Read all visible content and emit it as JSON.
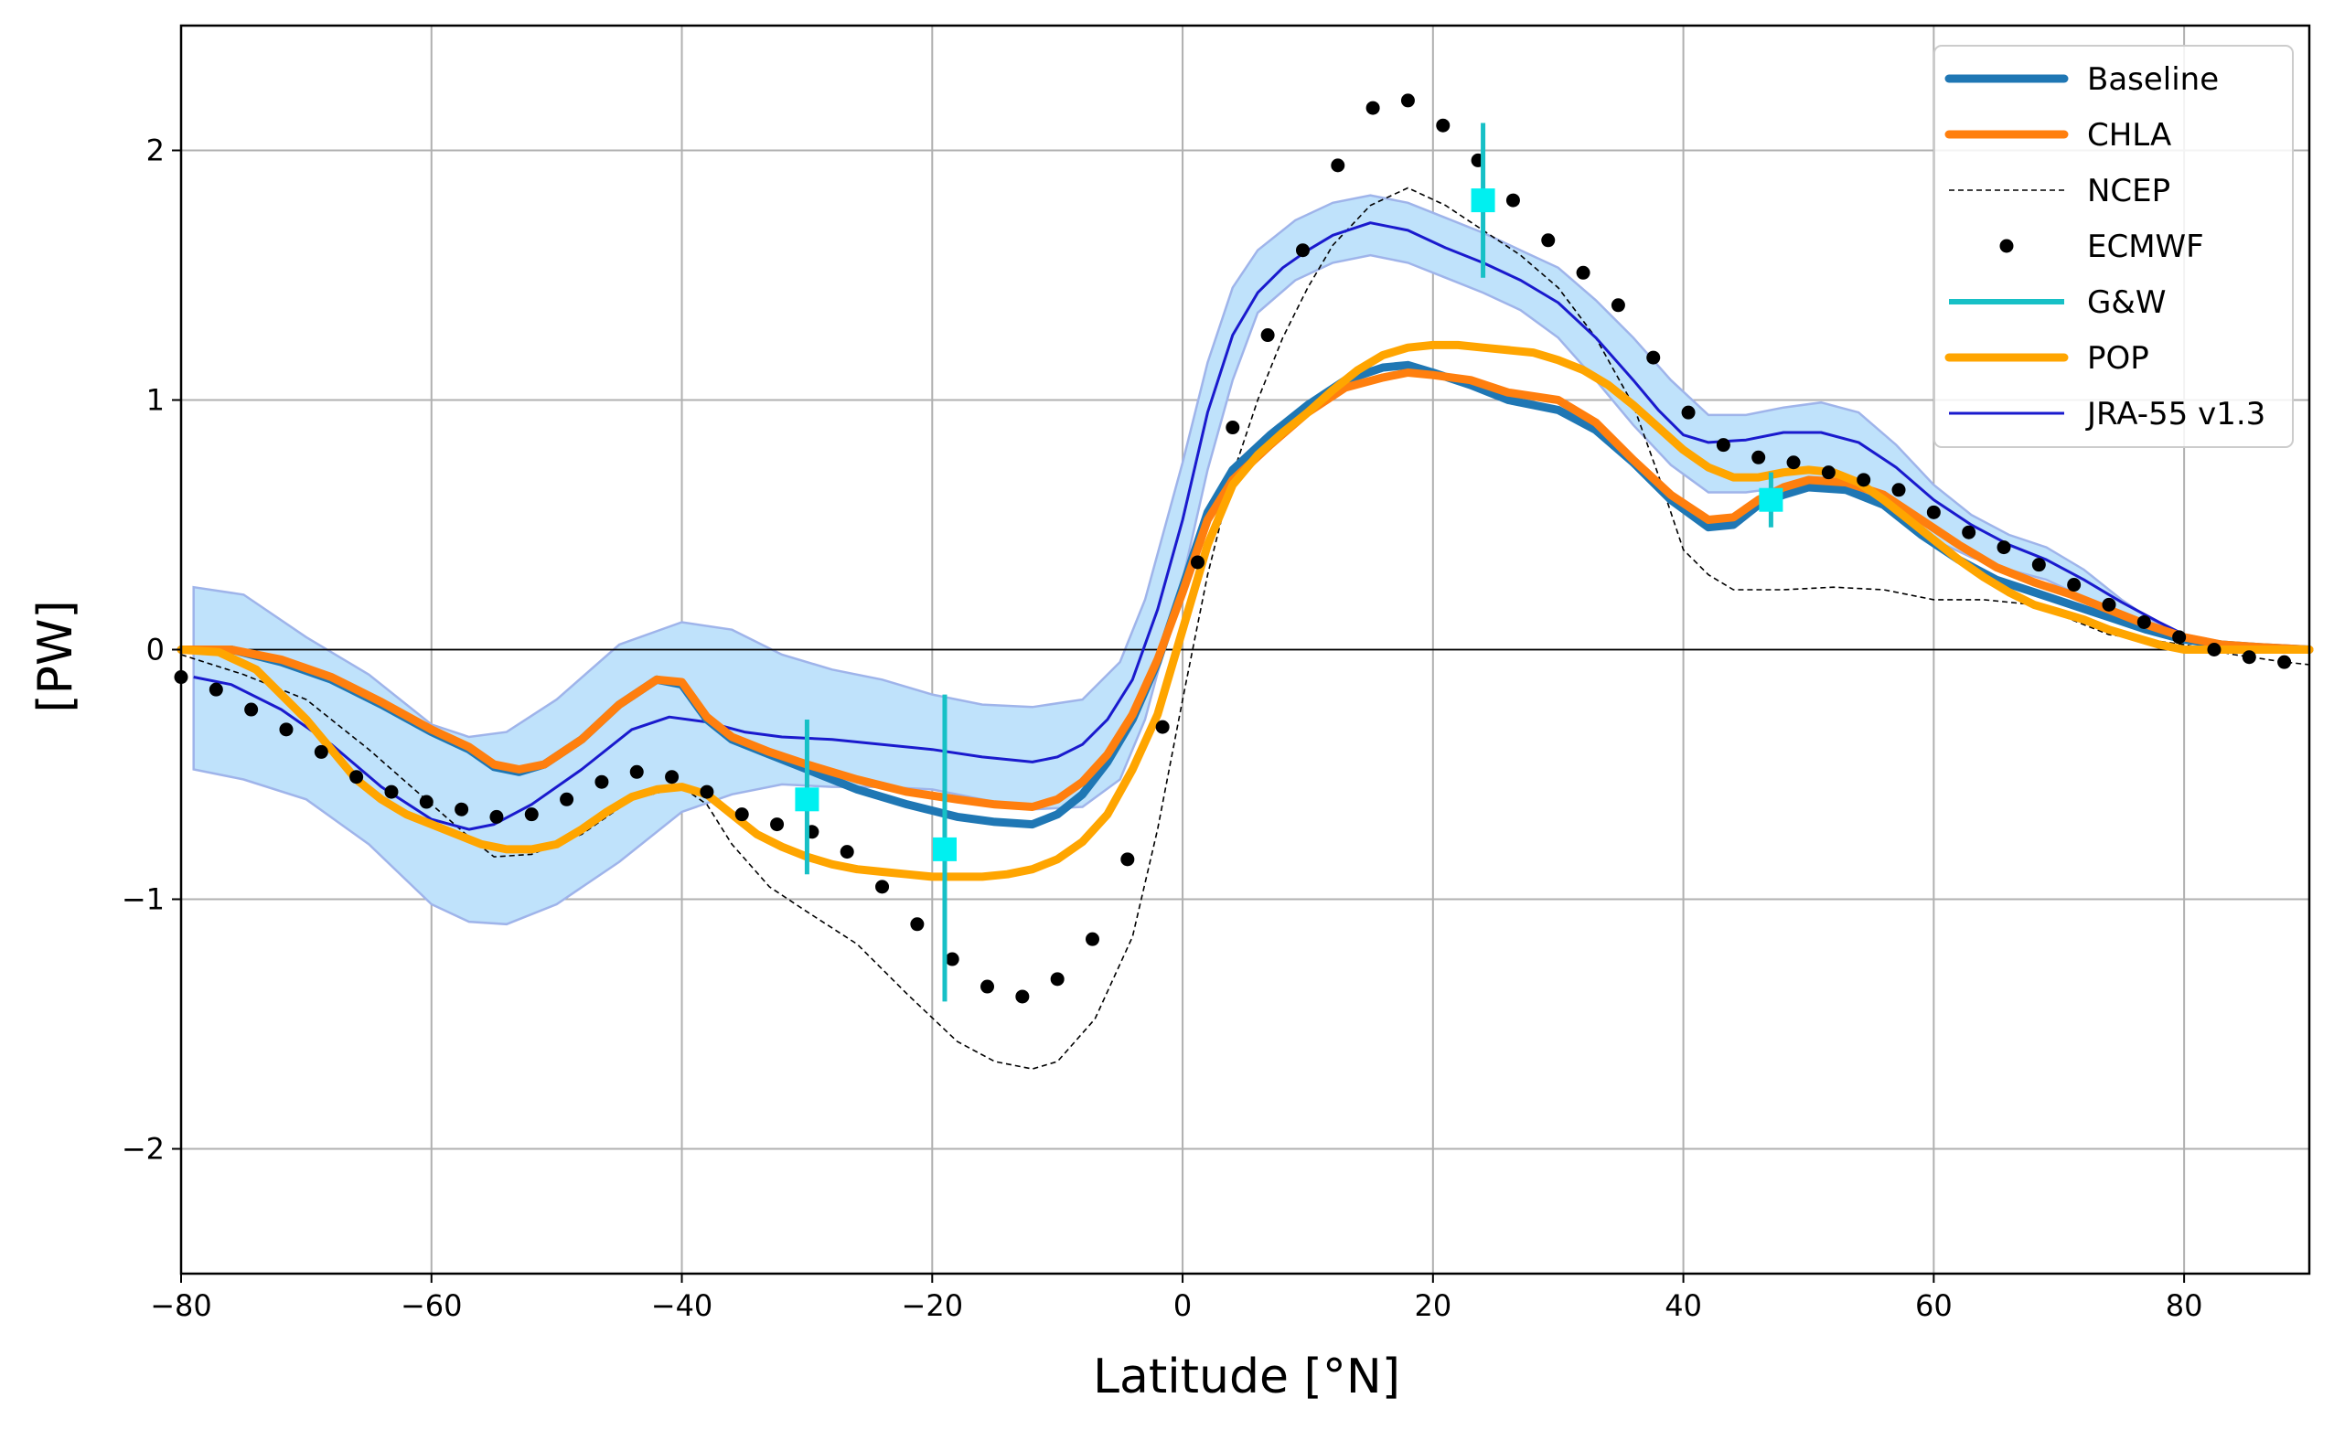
{
  "chart_data": {
    "type": "line",
    "title": "",
    "xlabel": "Latitude [°N]",
    "ylabel": "[PW]",
    "xlim": [
      -80,
      90
    ],
    "ylim": [
      -2.5,
      2.5
    ],
    "xticks": [
      -80,
      -60,
      -40,
      -20,
      0,
      20,
      40,
      60,
      80
    ],
    "xtick_labels": [
      "−80",
      "−60",
      "−40",
      "−20",
      "0",
      "20",
      "40",
      "60",
      "80"
    ],
    "yticks": [
      -2,
      -1,
      0,
      1,
      2
    ],
    "ytick_labels": [
      "−2",
      "−1",
      "0",
      "1",
      "2"
    ],
    "grid": true,
    "zero_line": true,
    "legend_position": "top-right",
    "band": {
      "series": "JRA-55 v1.3",
      "color": "#bfe2fb",
      "edge_color": "#9fb4ea",
      "x": [
        -79,
        -75,
        -70,
        -65,
        -60,
        -57,
        -54,
        -50,
        -45,
        -40,
        -36,
        -32,
        -28,
        -24,
        -20,
        -16,
        -12,
        -8,
        -5,
        -3,
        0,
        2,
        4,
        6,
        9,
        12,
        15,
        18,
        21,
        24,
        27,
        30,
        33,
        36,
        39,
        42,
        45,
        48,
        51,
        54,
        57,
        60,
        63,
        66,
        69,
        72,
        75,
        78,
        80,
        83,
        86,
        90
      ],
      "upper": [
        0.25,
        0.22,
        0.05,
        -0.1,
        -0.3,
        -0.35,
        -0.33,
        -0.2,
        0.02,
        0.11,
        0.08,
        -0.02,
        -0.08,
        -0.12,
        -0.18,
        -0.22,
        -0.23,
        -0.2,
        -0.05,
        0.2,
        0.75,
        1.15,
        1.45,
        1.6,
        1.72,
        1.79,
        1.82,
        1.79,
        1.73,
        1.67,
        1.6,
        1.53,
        1.4,
        1.25,
        1.08,
        0.94,
        0.94,
        0.97,
        0.99,
        0.95,
        0.82,
        0.66,
        0.54,
        0.46,
        0.41,
        0.32,
        0.2,
        0.1,
        0.06,
        0.03,
        0.01,
        0.0
      ],
      "lower": [
        -0.48,
        -0.52,
        -0.6,
        -0.78,
        -1.02,
        -1.09,
        -1.1,
        -1.02,
        -0.85,
        -0.65,
        -0.58,
        -0.54,
        -0.55,
        -0.55,
        -0.56,
        -0.6,
        -0.64,
        -0.63,
        -0.52,
        -0.28,
        0.28,
        0.72,
        1.08,
        1.35,
        1.48,
        1.55,
        1.58,
        1.55,
        1.49,
        1.43,
        1.36,
        1.25,
        1.08,
        0.9,
        0.74,
        0.63,
        0.63,
        0.65,
        0.66,
        0.63,
        0.55,
        0.44,
        0.37,
        0.32,
        0.28,
        0.21,
        0.13,
        0.07,
        0.04,
        0.02,
        0.0,
        -0.01
      ]
    },
    "series": [
      {
        "name": "Baseline",
        "color": "#1f77b4",
        "style": "solid-thick",
        "x": [
          -80,
          -76,
          -72,
          -68,
          -64,
          -60,
          -57,
          -55,
          -53,
          -51,
          -48,
          -45,
          -42,
          -40,
          -38,
          -36,
          -33,
          -30,
          -26,
          -22,
          -18,
          -15,
          -12,
          -10,
          -8,
          -6,
          -4,
          -2,
          0,
          2,
          4,
          7,
          10,
          13,
          16,
          18,
          20,
          23,
          26,
          30,
          33,
          36,
          39,
          42,
          44,
          46,
          48,
          50,
          53,
          56,
          59,
          62,
          65,
          68,
          71,
          74,
          77,
          80,
          83,
          86,
          90
        ],
        "y": [
          0.0,
          0.0,
          -0.05,
          -0.12,
          -0.22,
          -0.33,
          -0.4,
          -0.47,
          -0.49,
          -0.46,
          -0.36,
          -0.22,
          -0.12,
          -0.14,
          -0.28,
          -0.36,
          -0.42,
          -0.48,
          -0.56,
          -0.62,
          -0.67,
          -0.69,
          -0.7,
          -0.66,
          -0.58,
          -0.45,
          -0.28,
          -0.05,
          0.25,
          0.55,
          0.72,
          0.86,
          0.98,
          1.08,
          1.13,
          1.14,
          1.11,
          1.06,
          1.0,
          0.96,
          0.88,
          0.75,
          0.6,
          0.49,
          0.5,
          0.58,
          0.62,
          0.65,
          0.64,
          0.58,
          0.46,
          0.36,
          0.28,
          0.23,
          0.18,
          0.13,
          0.08,
          0.04,
          0.02,
          0.01,
          0.0
        ]
      },
      {
        "name": "CHLA",
        "color": "#ff7f0e",
        "style": "solid-thick",
        "x": [
          -80,
          -76,
          -72,
          -68,
          -64,
          -60,
          -57,
          -55,
          -53,
          -51,
          -48,
          -45,
          -42,
          -40,
          -38,
          -36,
          -33,
          -30,
          -26,
          -22,
          -18,
          -15,
          -12,
          -10,
          -8,
          -6,
          -4,
          -2,
          0,
          2,
          4,
          7,
          10,
          13,
          16,
          18,
          20,
          23,
          26,
          30,
          33,
          36,
          39,
          42,
          44,
          46,
          48,
          50,
          53,
          56,
          59,
          62,
          65,
          68,
          71,
          74,
          77,
          80,
          83,
          86,
          90
        ],
        "y": [
          0.0,
          0.0,
          -0.04,
          -0.11,
          -0.21,
          -0.32,
          -0.39,
          -0.46,
          -0.48,
          -0.46,
          -0.36,
          -0.22,
          -0.12,
          -0.13,
          -0.27,
          -0.35,
          -0.41,
          -0.46,
          -0.52,
          -0.57,
          -0.6,
          -0.62,
          -0.63,
          -0.6,
          -0.53,
          -0.42,
          -0.26,
          -0.04,
          0.23,
          0.52,
          0.68,
          0.82,
          0.95,
          1.05,
          1.09,
          1.11,
          1.1,
          1.08,
          1.03,
          1.0,
          0.91,
          0.76,
          0.62,
          0.52,
          0.53,
          0.6,
          0.65,
          0.68,
          0.67,
          0.62,
          0.52,
          0.42,
          0.33,
          0.27,
          0.22,
          0.16,
          0.1,
          0.05,
          0.02,
          0.01,
          0.0
        ]
      },
      {
        "name": "NCEP",
        "color": "#000000",
        "style": "dashed",
        "x": [
          -80,
          -75,
          -70,
          -65,
          -60,
          -57,
          -55,
          -52,
          -48,
          -44,
          -40,
          -38,
          -36,
          -33,
          -30,
          -26,
          -22,
          -18,
          -15,
          -12,
          -10,
          -7,
          -4,
          -2,
          0,
          2,
          4,
          6,
          8,
          10,
          12,
          15,
          18,
          21,
          24,
          27,
          30,
          33,
          36,
          38,
          40,
          42,
          44,
          48,
          52,
          56,
          60,
          64,
          68,
          71,
          74,
          77,
          80,
          84,
          88,
          90
        ],
        "y": [
          -0.02,
          -0.1,
          -0.2,
          -0.4,
          -0.62,
          -0.75,
          -0.83,
          -0.82,
          -0.74,
          -0.6,
          -0.55,
          -0.62,
          -0.78,
          -0.95,
          -1.05,
          -1.18,
          -1.38,
          -1.57,
          -1.65,
          -1.68,
          -1.65,
          -1.48,
          -1.15,
          -0.72,
          -0.2,
          0.3,
          0.7,
          1.0,
          1.25,
          1.45,
          1.62,
          1.78,
          1.85,
          1.78,
          1.68,
          1.58,
          1.45,
          1.25,
          0.98,
          0.7,
          0.4,
          0.3,
          0.24,
          0.24,
          0.25,
          0.24,
          0.2,
          0.2,
          0.18,
          0.12,
          0.06,
          0.04,
          0.02,
          -0.02,
          -0.05,
          -0.06
        ]
      },
      {
        "name": "ECMWF",
        "color": "#000000",
        "style": "dots",
        "x": [
          -80,
          -77.2,
          -74.4,
          -71.6,
          -68.8,
          -66,
          -63.2,
          -60.4,
          -57.6,
          -54.8,
          -52,
          -49.2,
          -46.4,
          -43.6,
          -40.8,
          -38,
          -35.2,
          -32.4,
          -29.6,
          -26.8,
          -24,
          -21.2,
          -18.4,
          -15.6,
          -12.8,
          -10,
          -7.2,
          -4.4,
          -1.6,
          1.2,
          4,
          6.8,
          9.6,
          12.4,
          15.2,
          18,
          20.8,
          23.6,
          26.4,
          29.2,
          32,
          34.8,
          37.6,
          40.4,
          43.2,
          46,
          48.8,
          51.6,
          54.4,
          57.2,
          60,
          62.8,
          65.6,
          68.4,
          71.2,
          74,
          76.8,
          79.6,
          82.4,
          85.2,
          88
        ],
        "y": [
          -0.11,
          -0.16,
          -0.24,
          -0.32,
          -0.41,
          -0.51,
          -0.57,
          -0.61,
          -0.64,
          -0.67,
          -0.66,
          -0.6,
          -0.53,
          -0.49,
          -0.51,
          -0.57,
          -0.66,
          -0.7,
          -0.73,
          -0.81,
          -0.95,
          -1.1,
          -1.24,
          -1.35,
          -1.39,
          -1.32,
          -1.16,
          -0.84,
          -0.31,
          0.35,
          0.89,
          1.26,
          1.6,
          1.94,
          2.17,
          2.2,
          2.1,
          1.96,
          1.8,
          1.64,
          1.51,
          1.38,
          1.17,
          0.95,
          0.82,
          0.77,
          0.75,
          0.71,
          0.68,
          0.64,
          0.55,
          0.47,
          0.41,
          0.34,
          0.26,
          0.18,
          0.11,
          0.05,
          0.0,
          -0.03,
          -0.05
        ]
      },
      {
        "name": "G&W",
        "color": "#17c0c6",
        "marker_color": "#00f0f0",
        "style": "errorbar",
        "points": [
          {
            "x": -30,
            "y": -0.6,
            "low": -0.9,
            "high": -0.28
          },
          {
            "x": -19,
            "y": -0.8,
            "low": -1.41,
            "high": -0.18
          },
          {
            "x": 24,
            "y": 1.8,
            "low": 1.49,
            "high": 2.11
          },
          {
            "x": 47,
            "y": 0.6,
            "low": 0.49,
            "high": 0.71
          }
        ]
      },
      {
        "name": "POP",
        "color": "#ffa500",
        "style": "solid-thick",
        "x": [
          -80,
          -77,
          -74,
          -72,
          -70,
          -68,
          -66,
          -64,
          -62,
          -60,
          -58,
          -56,
          -54,
          -52,
          -50,
          -48,
          -46,
          -44,
          -42,
          -40,
          -38,
          -36,
          -34,
          -32,
          -30,
          -28,
          -26,
          -24,
          -22,
          -20,
          -18,
          -16,
          -14,
          -12,
          -10,
          -8,
          -6,
          -4,
          -2,
          0,
          2,
          4,
          6,
          8,
          10,
          12,
          14,
          16,
          18,
          20,
          22,
          24,
          26,
          28,
          30,
          32,
          34,
          36,
          38,
          40,
          42,
          44,
          46,
          48,
          50,
          52,
          54,
          56,
          58,
          60,
          62,
          64,
          66,
          68,
          70,
          72,
          74,
          76,
          78,
          80,
          84,
          88,
          90
        ],
        "y": [
          0.0,
          -0.01,
          -0.08,
          -0.18,
          -0.28,
          -0.4,
          -0.52,
          -0.6,
          -0.66,
          -0.7,
          -0.74,
          -0.78,
          -0.8,
          -0.8,
          -0.78,
          -0.72,
          -0.65,
          -0.59,
          -0.56,
          -0.55,
          -0.58,
          -0.66,
          -0.74,
          -0.79,
          -0.83,
          -0.86,
          -0.88,
          -0.89,
          -0.9,
          -0.91,
          -0.91,
          -0.91,
          -0.9,
          -0.88,
          -0.84,
          -0.77,
          -0.66,
          -0.48,
          -0.26,
          0.08,
          0.42,
          0.66,
          0.78,
          0.87,
          0.95,
          1.04,
          1.12,
          1.18,
          1.21,
          1.22,
          1.22,
          1.21,
          1.2,
          1.19,
          1.16,
          1.12,
          1.06,
          0.98,
          0.89,
          0.8,
          0.73,
          0.69,
          0.69,
          0.71,
          0.72,
          0.71,
          0.67,
          0.6,
          0.52,
          0.44,
          0.36,
          0.29,
          0.23,
          0.18,
          0.15,
          0.12,
          0.08,
          0.05,
          0.02,
          0.0,
          0.0,
          0.0,
          0.0
        ]
      },
      {
        "name": "JRA-55 v1.3",
        "color": "#1a1acd",
        "style": "solid-thin",
        "x": [
          -79,
          -76,
          -72,
          -68,
          -64,
          -60,
          -57,
          -55,
          -52,
          -48,
          -44,
          -41,
          -38,
          -35,
          -32,
          -28,
          -24,
          -20,
          -16,
          -12,
          -10,
          -8,
          -6,
          -4,
          -2,
          0,
          2,
          4,
          6,
          8,
          10,
          12,
          15,
          18,
          21,
          24,
          27,
          30,
          33,
          36,
          38,
          40,
          42,
          45,
          48,
          51,
          54,
          57,
          60,
          63,
          66,
          69,
          72,
          75,
          78,
          80,
          83,
          86,
          90
        ],
        "y": [
          -0.11,
          -0.14,
          -0.24,
          -0.38,
          -0.55,
          -0.68,
          -0.72,
          -0.7,
          -0.62,
          -0.48,
          -0.32,
          -0.27,
          -0.29,
          -0.33,
          -0.35,
          -0.36,
          -0.38,
          -0.4,
          -0.43,
          -0.45,
          -0.43,
          -0.38,
          -0.28,
          -0.12,
          0.16,
          0.52,
          0.95,
          1.26,
          1.43,
          1.53,
          1.6,
          1.66,
          1.71,
          1.68,
          1.61,
          1.55,
          1.48,
          1.39,
          1.25,
          1.08,
          0.96,
          0.86,
          0.83,
          0.84,
          0.87,
          0.87,
          0.83,
          0.73,
          0.6,
          0.5,
          0.42,
          0.36,
          0.28,
          0.19,
          0.11,
          0.06,
          0.03,
          0.01,
          0.0
        ]
      }
    ]
  }
}
